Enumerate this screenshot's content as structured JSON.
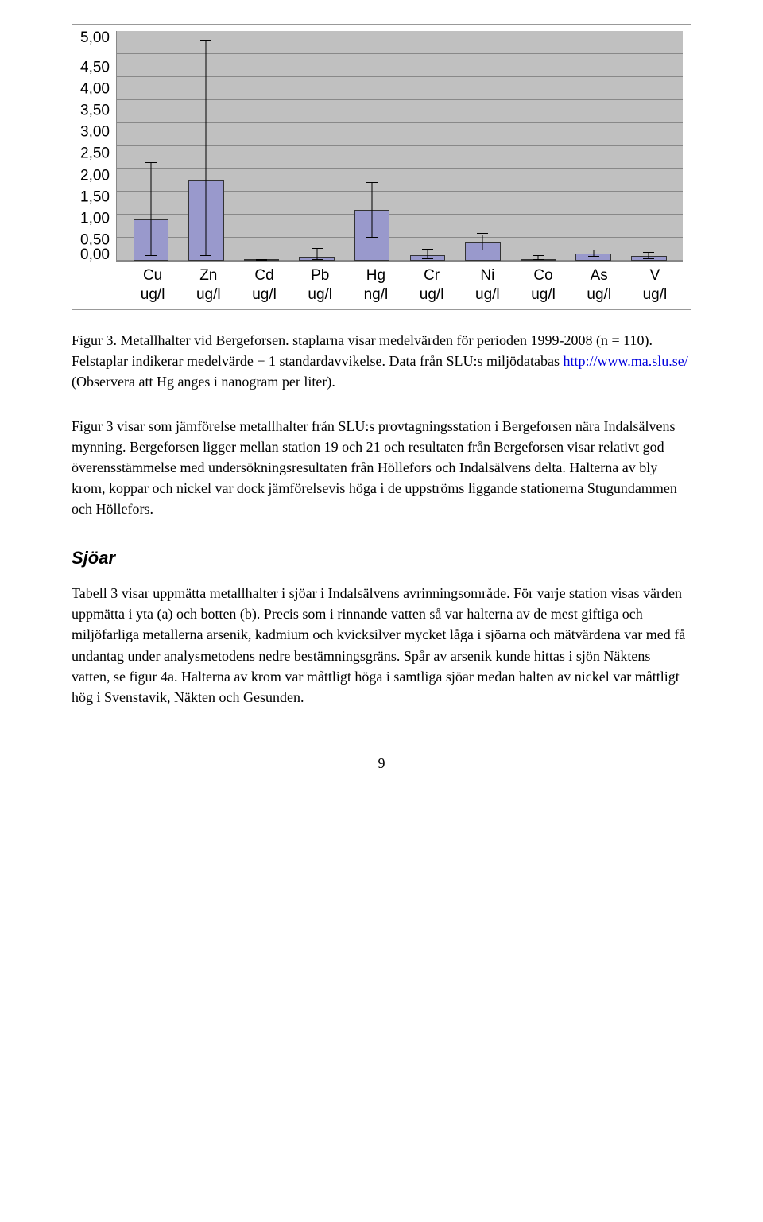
{
  "chart": {
    "type": "bar",
    "ylim": [
      0,
      5.0
    ],
    "ytick_step": 0.5,
    "y_ticks": [
      "5,00",
      "4,50",
      "4,00",
      "3,50",
      "3,00",
      "2,50",
      "2,00",
      "1,50",
      "1,00",
      "0,50",
      "0,00"
    ],
    "background_color": "#c0c0c0",
    "grid_color": "#888888",
    "bar_color": "#9999cc",
    "bar_border": "#333333",
    "categories": [
      {
        "line1": "Cu",
        "line2": "ug/l"
      },
      {
        "line1": "Zn",
        "line2": "ug/l"
      },
      {
        "line1": "Cd",
        "line2": "ug/l"
      },
      {
        "line1": "Pb",
        "line2": "ug/l"
      },
      {
        "line1": "Hg",
        "line2": "ng/l"
      },
      {
        "line1": "Cr",
        "line2": "ug/l"
      },
      {
        "line1": "Ni",
        "line2": "ug/l"
      },
      {
        "line1": "Co",
        "line2": "ug/l"
      },
      {
        "line1": "As",
        "line2": "ug/l"
      },
      {
        "line1": "V",
        "line2": "ug/l"
      }
    ],
    "values": [
      0.9,
      1.75,
      0.01,
      0.08,
      1.1,
      0.12,
      0.4,
      0.04,
      0.15,
      0.1
    ],
    "error_upper": [
      2.12,
      4.8,
      0.02,
      0.26,
      1.7,
      0.25,
      0.58,
      0.1,
      0.22,
      0.18
    ],
    "error_lower": [
      0.1,
      0.1,
      0.0,
      0.02,
      0.5,
      0.04,
      0.22,
      0.01,
      0.08,
      0.04
    ]
  },
  "caption": {
    "pre": "Figur 3. Metallhalter vid Bergeforsen. staplarna visar medelvärden för perioden 1999-2008 (n = 110). Felstaplar indikerar medelvärde + 1 standardavvikelse. Data från SLU:s miljödatabas ",
    "link_text": "http://www.ma.slu.se/",
    "post": " (Observera att Hg anges i nanogram per liter)."
  },
  "para1": "Figur 3 visar som jämförelse metallhalter från SLU:s provtagningsstation i Bergeforsen nära Indalsälvens mynning. Bergeforsen ligger mellan station 19 och 21 och resultaten från Bergeforsen visar relativt god överensstämmelse med undersökningsresultaten från Höllefors och Indalsälvens delta. Halterna av bly krom, koppar och nickel var dock jämförelsevis höga i de uppströms liggande stationerna Stugundammen och Höllefors.",
  "heading": "Sjöar",
  "para2": "Tabell 3 visar uppmätta metallhalter i sjöar i Indalsälvens avrinningsområde. För varje station visas värden uppmätta i yta (a) och botten (b). Precis som i rinnande vatten så var halterna av de mest giftiga och miljöfarliga metallerna arsenik, kadmium och kvicksilver mycket låga i sjöarna och mätvärdena var med få undantag under analysmetodens nedre bestämningsgräns. Spår av arsenik kunde hittas i sjön Näktens vatten, se figur 4a. Halterna av krom var måttligt höga i samtliga sjöar medan halten av nickel var måttligt hög i Svenstavik, Näkten och Gesunden.",
  "page_number": "9"
}
